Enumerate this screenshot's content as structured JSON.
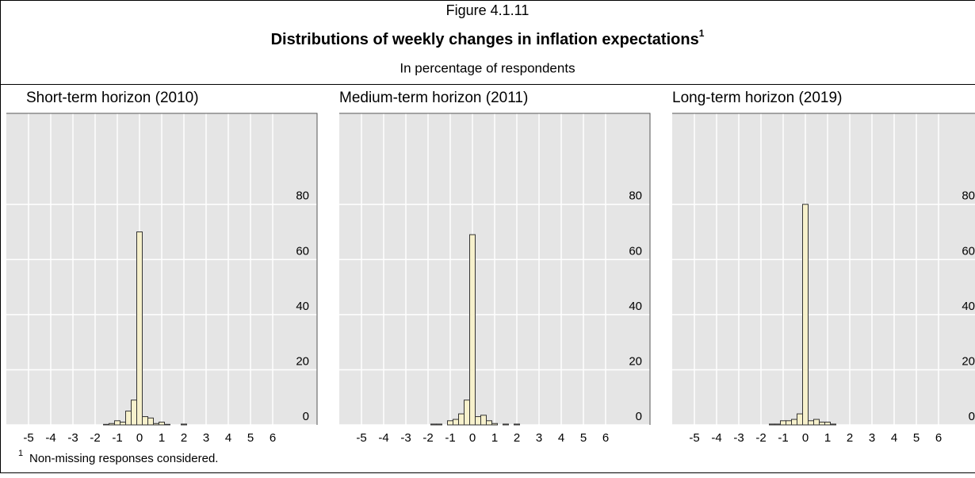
{
  "figure": {
    "label": "Figure 4.1.11",
    "title": "Distributions of weekly changes in inflation expectations",
    "title_note": "1",
    "subtitle": "In percentage of respondents"
  },
  "chart_data": [
    {
      "type": "histogram",
      "title": "Short-term horizon (2010)",
      "bins": [
        -2.125,
        -1.875,
        -1.625,
        -1.375,
        -1.125,
        -0.875,
        -0.625,
        -0.375,
        -0.125,
        0.125,
        0.375,
        0.625,
        0.875,
        1.125,
        1.375,
        1.625,
        1.875,
        2.125,
        2.375
      ],
      "counts": [
        0,
        0,
        0.2,
        0.5,
        1.5,
        1,
        5,
        9,
        70,
        3,
        2.5,
        0.5,
        1,
        0.2,
        0,
        0,
        0.3,
        0
      ],
      "color": "#f7f1cc",
      "xlim": [
        -6,
        8
      ],
      "xticks": [
        -5,
        -4,
        -3,
        -2,
        -1,
        0,
        1,
        2,
        3,
        4,
        5,
        6
      ],
      "ylim": [
        0,
        113
      ],
      "yticks": [
        0,
        20,
        40,
        60,
        80
      ],
      "grid": true
    },
    {
      "type": "histogram",
      "title": "Medium-term horizon (2011)",
      "bins": [
        -2.125,
        -1.875,
        -1.625,
        -1.375,
        -1.125,
        -0.875,
        -0.625,
        -0.375,
        -0.125,
        0.125,
        0.375,
        0.625,
        0.875,
        1.125,
        1.375,
        1.625,
        1.875,
        2.125,
        2.375
      ],
      "counts": [
        0,
        0.3,
        0.3,
        0,
        1.5,
        2,
        4,
        9,
        69,
        3,
        3.5,
        1.5,
        0.5,
        0,
        0.3,
        0,
        0.3,
        0
      ],
      "color": "#f7f1cc",
      "xlim": [
        -6,
        8
      ],
      "xticks": [
        -5,
        -4,
        -3,
        -2,
        -1,
        0,
        1,
        2,
        3,
        4,
        5,
        6
      ],
      "ylim": [
        0,
        113
      ],
      "yticks": [
        0,
        20,
        40,
        60,
        80
      ],
      "grid": true
    },
    {
      "type": "histogram",
      "title": "Long-term horizon (2019)",
      "bins": [
        -2.125,
        -1.875,
        -1.625,
        -1.375,
        -1.125,
        -0.875,
        -0.625,
        -0.375,
        -0.125,
        0.125,
        0.375,
        0.625,
        0.875,
        1.125,
        1.375,
        1.625,
        1.875,
        2.125,
        2.375
      ],
      "counts": [
        0,
        0,
        0.3,
        0.3,
        1.5,
        1.5,
        2,
        4,
        80,
        1.5,
        2,
        1,
        1,
        0.3,
        0,
        0,
        0,
        0
      ],
      "color": "#f7f1cc",
      "xlim": [
        -6,
        8
      ],
      "xticks": [
        -5,
        -4,
        -3,
        -2,
        -1,
        0,
        1,
        2,
        3,
        4,
        5,
        6
      ],
      "ylim": [
        0,
        113
      ],
      "yticks": [
        0,
        20,
        40,
        60,
        80
      ],
      "grid": true
    }
  ],
  "footnote": {
    "mark": "1",
    "text": "Non-missing responses considered."
  }
}
